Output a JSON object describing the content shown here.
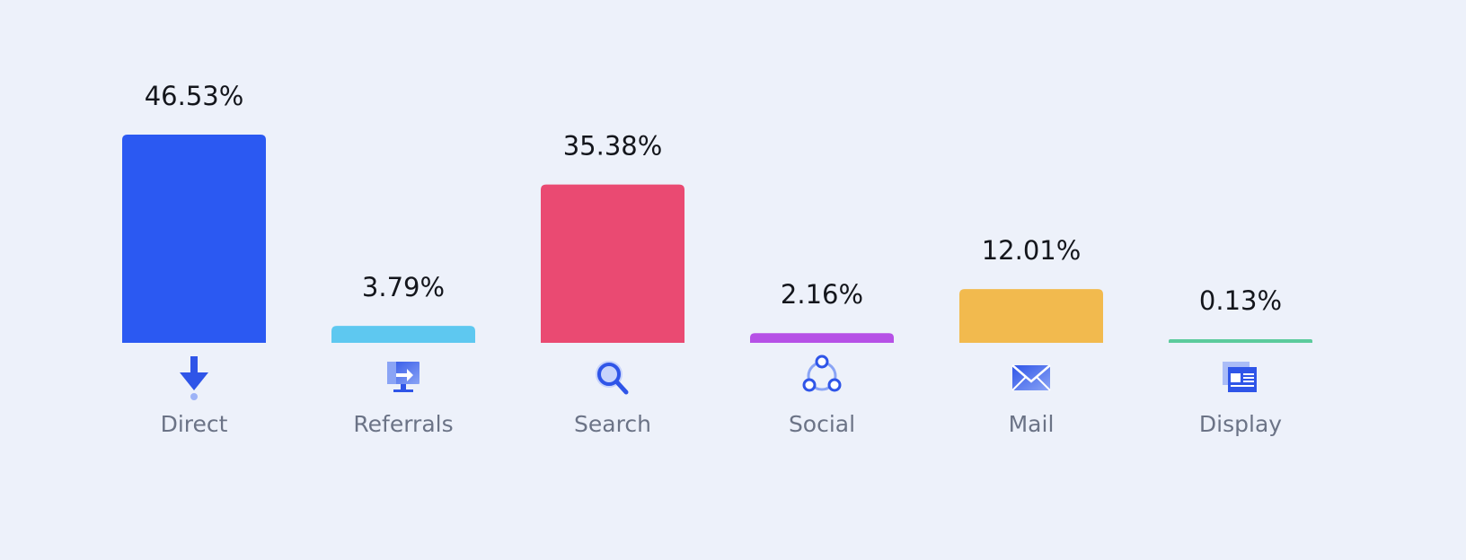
{
  "chart_data": {
    "type": "bar",
    "categories": [
      "Direct",
      "Referrals",
      "Search",
      "Social",
      "Mail",
      "Display"
    ],
    "values": [
      46.53,
      3.79,
      35.38,
      2.16,
      12.01,
      0.13
    ],
    "value_labels": [
      "46.53%",
      "3.79%",
      "35.38%",
      "2.16%",
      "12.01%",
      "0.13%"
    ],
    "colors": [
      "#2b59f2",
      "#5ec8f0",
      "#ea4a72",
      "#b651e6",
      "#f2ba4e",
      "#5ccb9c"
    ],
    "icons": [
      "download-arrow-icon",
      "monitor-arrow-icon",
      "magnifier-icon",
      "share-network-icon",
      "envelope-icon",
      "browser-window-icon"
    ],
    "ylim": [
      0,
      46.53
    ],
    "grid": false,
    "legend": "none"
  }
}
